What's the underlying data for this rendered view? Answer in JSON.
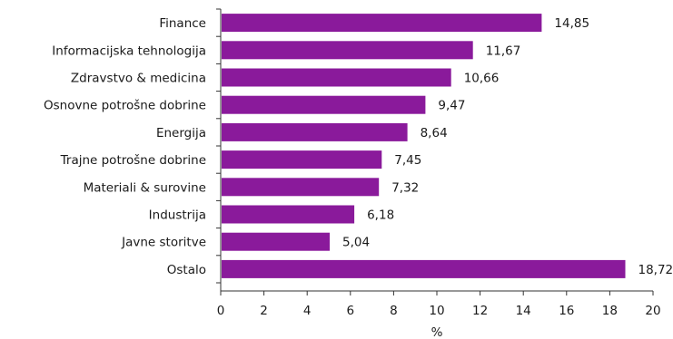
{
  "chart_data": {
    "type": "bar",
    "orientation": "horizontal",
    "categories": [
      "Finance",
      "Informacijska tehnologija",
      "Zdravstvo & medicina",
      "Osnovne potrošne dobrine",
      "Energija",
      "Trajne potrošne dobrine",
      "Materiali & surovine",
      "Industrija",
      "Javne storitve",
      "Ostalo"
    ],
    "values": [
      14.85,
      11.67,
      10.66,
      9.47,
      8.64,
      7.45,
      7.32,
      6.18,
      5.04,
      18.72
    ],
    "value_labels": [
      "14,85",
      "11,67",
      "10,66",
      "9,47",
      "8,64",
      "7,45",
      "7,32",
      "6,18",
      "5,04",
      "18,72"
    ],
    "xlabel": "%",
    "xlim": [
      0,
      20
    ],
    "xticks": [
      0,
      2,
      4,
      6,
      8,
      10,
      12,
      14,
      16,
      18,
      20
    ],
    "grid": false,
    "bar_color": "#8a1a9b"
  }
}
